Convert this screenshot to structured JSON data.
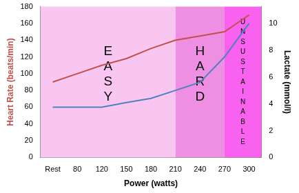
{
  "chart_data": {
    "type": "line",
    "x_label": "Power (watts)",
    "y_label": "Heart Rate (beats/min)",
    "y2_label": "Lactate (mmol/l)",
    "categories": [
      "Rest",
      "80",
      "120",
      "150",
      "180",
      "210",
      "240",
      "270",
      "300"
    ],
    "series": [
      {
        "color": "#c0504d",
        "values": [
          90,
          100,
          110,
          118,
          130,
          140,
          145,
          150,
          170
        ]
      },
      {
        "color": "#4f81bd",
        "axis": "y2",
        "values": [
          3.75,
          3.75,
          3.75,
          4.1,
          4.4,
          5,
          5.6,
          7.5,
          10
        ]
      }
    ],
    "ylim": [
      0,
      180
    ],
    "yticks": [
      0,
      20,
      40,
      60,
      80,
      100,
      120,
      140,
      160,
      180
    ],
    "y2lim": [
      0,
      11.25
    ],
    "y2ticks": [
      0,
      2,
      4,
      6,
      8,
      10
    ],
    "grid": false,
    "annotations": [
      {
        "text": "EASY",
        "from": "Rest",
        "to": "210",
        "color": "#f8c6f0"
      },
      {
        "text": "HARD",
        "from": "210",
        "to": "270",
        "color": "#ee8fe4"
      },
      {
        "text": "UNSUSTAINABLE",
        "from": "270",
        "to": "300",
        "color": "#f862ee"
      }
    ]
  }
}
